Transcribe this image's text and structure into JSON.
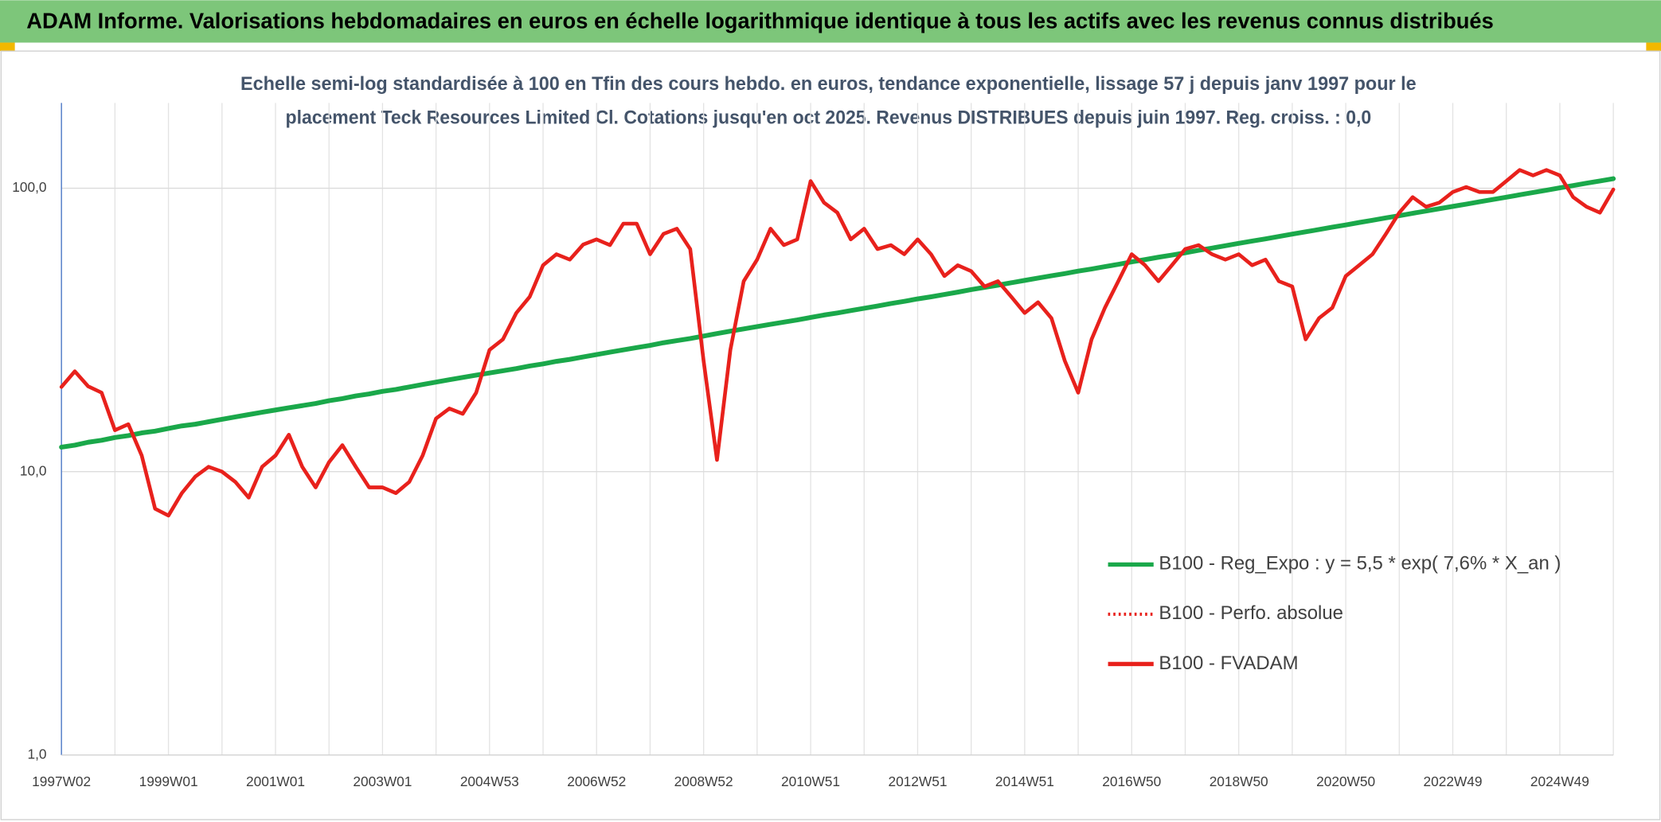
{
  "chart_data": {
    "type": "line",
    "title": "ADAM Informe. Valorisations hebdomadaires en euros en échelle logarithmique identique à tous les actifs avec les revenus connus distribués",
    "subtitle": [
      "Echelle semi-log standardisée à 100 en Tfin des cours hebdo. en euros, tendance exponentielle, lissage 57 j depuis janv 1997 pour le",
      "placement Teck Resources Limited Cl. Cotations jusqu'en oct 2025. Revenus DISTRIBUES depuis juin 1997. Reg. croiss. : 0,0"
    ],
    "categories": [
      "1997W02",
      null,
      null,
      null,
      null,
      null,
      null,
      null,
      "1999W01",
      null,
      null,
      null,
      null,
      null,
      null,
      null,
      "2001W01",
      null,
      null,
      null,
      null,
      null,
      null,
      null,
      "2003W01",
      null,
      null,
      null,
      null,
      null,
      null,
      null,
      "2004W53",
      null,
      null,
      null,
      null,
      null,
      null,
      null,
      "2006W52",
      null,
      null,
      null,
      null,
      null,
      null,
      null,
      "2008W52",
      null,
      null,
      null,
      null,
      null,
      null,
      null,
      "2010W51",
      null,
      null,
      null,
      null,
      null,
      null,
      null,
      "2012W51",
      null,
      null,
      null,
      null,
      null,
      null,
      null,
      "2014W51",
      null,
      null,
      null,
      null,
      null,
      null,
      null,
      "2016W50",
      null,
      null,
      null,
      null,
      null,
      null,
      null,
      "2018W50",
      null,
      null,
      null,
      null,
      null,
      null,
      null,
      "2020W50",
      null,
      null,
      null,
      null,
      null,
      null,
      null,
      "2022W49",
      null,
      null,
      null,
      null,
      null,
      null,
      null,
      "2024W49",
      null,
      null,
      null,
      null
    ],
    "log_scale": true,
    "ylim": [
      1,
      200
    ],
    "yticks": [
      {
        "value": 1,
        "label": "1,0"
      },
      {
        "value": 10,
        "label": "10,0"
      },
      {
        "value": 100,
        "label": "100,0"
      }
    ],
    "grid": true,
    "legend": "lower right",
    "series": [
      {
        "name": "B100 - Reg_Expo : y = 5,5 * exp( 7,6% *  X_an )",
        "color": "#1aa84a",
        "line_style": "solid",
        "values": [
          12.2,
          12.4,
          12.7,
          12.9,
          13.2,
          13.4,
          13.7,
          13.9,
          14.2,
          14.5,
          14.7,
          15.0,
          15.3,
          15.6,
          15.9,
          16.2,
          16.5,
          16.8,
          17.1,
          17.4,
          17.8,
          18.1,
          18.5,
          18.8,
          19.2,
          19.5,
          19.9,
          20.3,
          20.7,
          21.1,
          21.5,
          21.9,
          22.3,
          22.7,
          23.1,
          23.6,
          24.0,
          24.5,
          24.9,
          25.4,
          25.9,
          26.4,
          26.9,
          27.4,
          27.9,
          28.5,
          29.0,
          29.5,
          30.1,
          30.7,
          31.3,
          31.9,
          32.5,
          33.1,
          33.7,
          34.3,
          35.0,
          35.7,
          36.3,
          37.0,
          37.7,
          38.4,
          39.2,
          39.9,
          40.7,
          41.4,
          42.2,
          43.0,
          43.9,
          44.7,
          45.5,
          46.4,
          47.3,
          48.2,
          49.1,
          50.0,
          51.0,
          51.9,
          52.9,
          53.9,
          55.0,
          56.0,
          57.1,
          58.1,
          59.2,
          60.4,
          61.5,
          62.7,
          63.9,
          65.1,
          66.3,
          67.6,
          68.9,
          70.2,
          71.5,
          72.9,
          74.2,
          75.7,
          77.1,
          78.6,
          80.0,
          81.6,
          83.1,
          84.7,
          86.3,
          87.9,
          89.6,
          91.3,
          93.0,
          94.8,
          96.6,
          98.4,
          100.3,
          102.2,
          104.2,
          106.1,
          108.1
        ]
      },
      {
        "name": "B100 - Perfo. absolue",
        "color": "#e8211c",
        "line_style": "dotted",
        "values": [
          19.9,
          22.6,
          20,
          19,
          14,
          14.7,
          11.4,
          7.4,
          7,
          8.4,
          9.6,
          10.4,
          10,
          9.2,
          8.1,
          10.4,
          11.4,
          13.5,
          10.4,
          8.8,
          10.8,
          12.4,
          10.4,
          8.8,
          8.8,
          8.4,
          9.2,
          11.4,
          15.4,
          16.7,
          16,
          19,
          26.9,
          29.3,
          36.3,
          41.4,
          53.5,
          58.5,
          56,
          63.3,
          66,
          63,
          75,
          75,
          58.5,
          69,
          72,
          61,
          24.6,
          11,
          26.9,
          47,
          56,
          72,
          63,
          66,
          106,
          89,
          82,
          66,
          72,
          61,
          63,
          58.5,
          66,
          58.5,
          49,
          53.5,
          51,
          45,
          47,
          41.4,
          36.3,
          39.6,
          34.8,
          24.6,
          19,
          29.3,
          37.9,
          47,
          58.5,
          53.5,
          47,
          53.5,
          61,
          63,
          58.5,
          56,
          58.5,
          53.5,
          56,
          47,
          45,
          29.3,
          34.8,
          37.9,
          49,
          53.5,
          58.5,
          69,
          82,
          93,
          86,
          89,
          97,
          101,
          97,
          97,
          106,
          116,
          111,
          116,
          111,
          93,
          86,
          82,
          99
        ]
      },
      {
        "name": "B100 - FVADAM",
        "color": "#e8211c",
        "line_style": "solid",
        "values": [
          19.9,
          22.6,
          20,
          19,
          14,
          14.7,
          11.4,
          7.4,
          7,
          8.4,
          9.6,
          10.4,
          10,
          9.2,
          8.1,
          10.4,
          11.4,
          13.5,
          10.4,
          8.8,
          10.8,
          12.4,
          10.4,
          8.8,
          8.8,
          8.4,
          9.2,
          11.4,
          15.4,
          16.7,
          16,
          19,
          26.9,
          29.3,
          36.3,
          41.4,
          53.5,
          58.5,
          56,
          63.3,
          66,
          63,
          75,
          75,
          58.5,
          69,
          72,
          61,
          24.6,
          11,
          26.9,
          47,
          56,
          72,
          63,
          66,
          106,
          89,
          82,
          66,
          72,
          61,
          63,
          58.5,
          66,
          58.5,
          49,
          53.5,
          51,
          45,
          47,
          41.4,
          36.3,
          39.6,
          34.8,
          24.6,
          19,
          29.3,
          37.9,
          47,
          58.5,
          53.5,
          47,
          53.5,
          61,
          63,
          58.5,
          56,
          58.5,
          53.5,
          56,
          47,
          45,
          29.3,
          34.8,
          37.9,
          49,
          53.5,
          58.5,
          69,
          82,
          93,
          86,
          89,
          97,
          101,
          97,
          97,
          106,
          116,
          111,
          116,
          111,
          93,
          86,
          82,
          99
        ]
      }
    ]
  }
}
